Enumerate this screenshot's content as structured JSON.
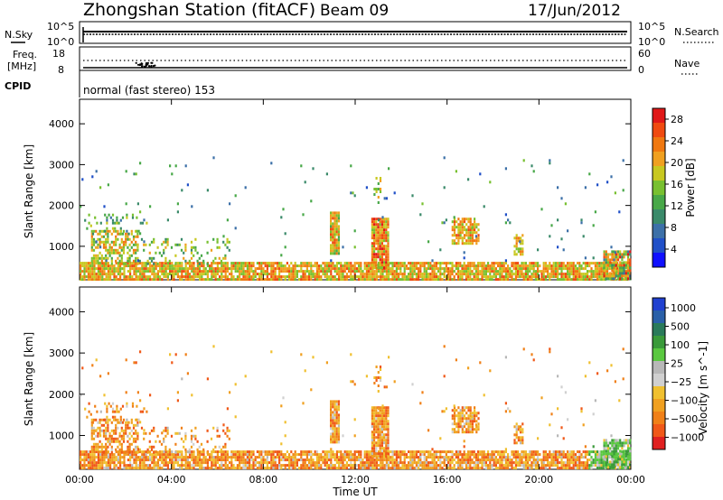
{
  "header": {
    "station": "Zhongshan Station (fitACF)",
    "beam": "Beam 09",
    "date": "17/Jun/2012"
  },
  "top_panels": {
    "nsky_label": "N.Sky",
    "nsearch_label": "N.Search",
    "tick_1e5": "10^5",
    "tick_1e0": "10^0",
    "freq_label_1": "Freq.",
    "freq_label_2": "[MHz]",
    "freq_tick_top": "18",
    "freq_tick_bottom": "8",
    "nave_label": "Nave",
    "nave_tick_top": "60",
    "nave_tick_bottom": "0",
    "cpid_label": "CPID",
    "cpid_value": "normal (fast stereo) 153"
  },
  "chart_data": [
    {
      "type": "heatmap",
      "title": "",
      "quantity": "Power",
      "ylabel": "Slant Range [km]",
      "yticks": [
        1000,
        2000,
        3000,
        4000
      ],
      "ylim": [
        180,
        4600
      ],
      "xlabel": "",
      "xlim_hours": [
        0,
        24
      ],
      "colorbar": {
        "label": "Power [dB]",
        "ticks": [
          "4",
          "8",
          "12",
          "16",
          "20",
          "24",
          "28"
        ],
        "colors": [
          "#1010ff",
          "#2050c8",
          "#3c70a8",
          "#3a8a6a",
          "#48a848",
          "#78c030",
          "#c8c820",
          "#f0a020",
          "#f07810",
          "#f04a10",
          "#e01818"
        ]
      }
    },
    {
      "type": "heatmap",
      "title": "",
      "quantity": "Velocity",
      "ylabel": "Slant Range [km]",
      "yticks": [
        1000,
        2000,
        3000,
        4000
      ],
      "ylim": [
        180,
        4600
      ],
      "xlabel": "Time UT",
      "xticks": [
        "00:00",
        "04:00",
        "08:00",
        "12:00",
        "16:00",
        "20:00",
        "00:00"
      ],
      "xlim_hours": [
        0,
        24
      ],
      "colorbar": {
        "label": "Velocity [m s^-1]",
        "ticks": [
          "1000",
          "500",
          "100",
          "25",
          "−25",
          "−100",
          "−500",
          "−1000"
        ],
        "colors": [
          "#2040d0",
          "#2a60a8",
          "#2a7a5a",
          "#3a9a3a",
          "#5ac840",
          "#b8b8b8",
          "#d0d0d0",
          "#f0c030",
          "#f0a020",
          "#f08018",
          "#f05818",
          "#e02020"
        ]
      }
    }
  ],
  "scatter_regions": [
    {
      "x0": 0.0,
      "x1": 23.9,
      "r0": 180,
      "r1": 620,
      "dens": 0.85,
      "pw": [
        0.45,
        0.9
      ]
    },
    {
      "x0": 0.5,
      "x1": 2.5,
      "r0": 600,
      "r1": 1400,
      "dens": 0.55,
      "pw": [
        0.35,
        0.85
      ]
    },
    {
      "x0": 0.2,
      "x1": 3.0,
      "r0": 1300,
      "r1": 1800,
      "dens": 0.18,
      "pw": [
        0.2,
        0.6
      ]
    },
    {
      "x0": 2.5,
      "x1": 6.5,
      "r0": 600,
      "r1": 1200,
      "dens": 0.18,
      "pw": [
        0.3,
        0.7
      ]
    },
    {
      "x0": 10.9,
      "x1": 11.3,
      "r0": 800,
      "r1": 1850,
      "dens": 0.9,
      "pw": [
        0.4,
        0.9
      ]
    },
    {
      "x0": 12.7,
      "x1": 13.4,
      "r0": 500,
      "r1": 1700,
      "dens": 0.9,
      "pw": [
        0.5,
        1.0
      ]
    },
    {
      "x0": 12.8,
      "x1": 13.1,
      "r0": 2100,
      "r1": 2700,
      "dens": 0.4,
      "pw": [
        0.3,
        0.7
      ]
    },
    {
      "x0": 16.2,
      "x1": 17.4,
      "r0": 1050,
      "r1": 1700,
      "dens": 0.7,
      "pw": [
        0.5,
        0.9
      ]
    },
    {
      "x0": 18.9,
      "x1": 19.3,
      "r0": 800,
      "r1": 1300,
      "dens": 0.7,
      "pw": [
        0.5,
        0.8
      ]
    },
    {
      "x0": 22.8,
      "x1": 24.0,
      "r0": 180,
      "r1": 900,
      "dens": 0.8,
      "pw": [
        0.2,
        1.0
      ]
    },
    {
      "x0": 0.0,
      "x1": 24.0,
      "r0": 620,
      "r1": 3200,
      "dens": 0.012,
      "pw": [
        0.1,
        0.5
      ]
    }
  ]
}
